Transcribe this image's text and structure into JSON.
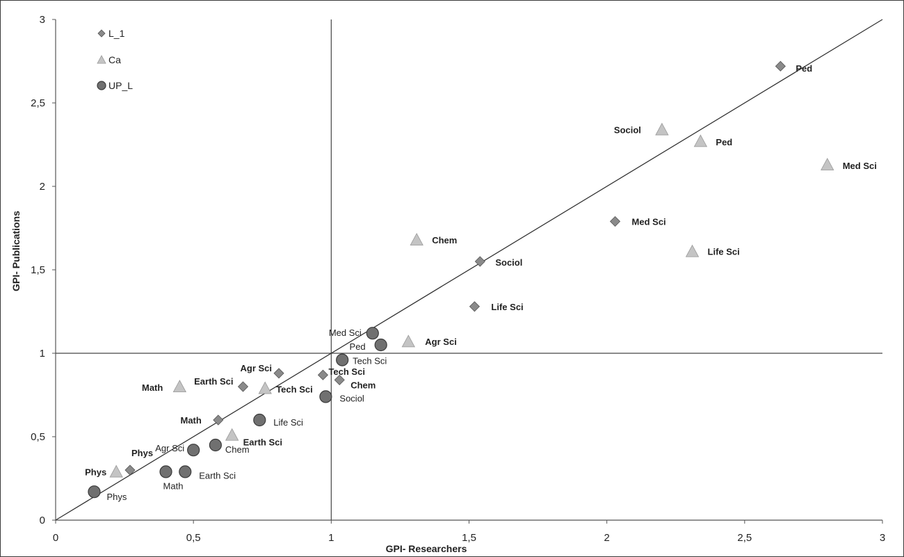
{
  "chart_data": {
    "type": "scatter",
    "title": "",
    "xlabel": "GPI- Researchers",
    "ylabel": "GPI- Publications",
    "xlim": [
      0,
      3
    ],
    "ylim": [
      0,
      3
    ],
    "xticks": [
      "0",
      "0,5",
      "1",
      "1,5",
      "2",
      "2,5",
      "3"
    ],
    "yticks": [
      "0",
      "0,5",
      "1",
      "1,5",
      "2",
      "2,5",
      "3"
    ],
    "reference_lines": {
      "vertical_x": 1,
      "horizontal_y": 1,
      "diagonal": [
        [
          0,
          0
        ],
        [
          3,
          3
        ]
      ]
    },
    "legend_position": "top-left",
    "colors": {
      "L_1": "#8a8a8a",
      "Ca": "#c4c4c4",
      "UP_L": "#707070"
    },
    "series": [
      {
        "name": "L_1",
        "marker": "diamond",
        "points": [
          {
            "label": "Ped",
            "x": 2.63,
            "y": 2.72
          },
          {
            "label": "Med Sci",
            "x": 2.03,
            "y": 1.79
          },
          {
            "label": "Sociol",
            "x": 1.54,
            "y": 1.55
          },
          {
            "label": "Life Sci",
            "x": 1.52,
            "y": 1.28
          },
          {
            "label": "Agr Sci",
            "x": 0.81,
            "y": 0.88
          },
          {
            "label": "Earth Sci",
            "x": 0.68,
            "y": 0.8
          },
          {
            "label": "Tech Sci",
            "x": 0.97,
            "y": 0.87
          },
          {
            "label": "Chem",
            "x": 1.03,
            "y": 0.84
          },
          {
            "label": "Math",
            "x": 0.59,
            "y": 0.6
          },
          {
            "label": "Phys",
            "x": 0.27,
            "y": 0.3
          }
        ]
      },
      {
        "name": "Ca",
        "marker": "triangle",
        "points": [
          {
            "label": "Sociol",
            "x": 2.2,
            "y": 2.34
          },
          {
            "label": "Ped",
            "x": 2.34,
            "y": 2.27
          },
          {
            "label": "Med Sci",
            "x": 2.8,
            "y": 2.13
          },
          {
            "label": "Life Sci",
            "x": 2.31,
            "y": 1.61
          },
          {
            "label": "Chem",
            "x": 1.31,
            "y": 1.68
          },
          {
            "label": "Agr Sci",
            "x": 1.28,
            "y": 1.07
          },
          {
            "label": "Math",
            "x": 0.45,
            "y": 0.8
          },
          {
            "label": "Tech Sci",
            "x": 0.76,
            "y": 0.79
          },
          {
            "label": "Earth Sci",
            "x": 0.64,
            "y": 0.51
          },
          {
            "label": "Phys",
            "x": 0.22,
            "y": 0.29
          }
        ]
      },
      {
        "name": "UP_L",
        "marker": "circle",
        "points": [
          {
            "label": "Med Sci",
            "x": 1.15,
            "y": 1.12
          },
          {
            "label": "Ped",
            "x": 1.18,
            "y": 1.05
          },
          {
            "label": "Tech Sci",
            "x": 1.04,
            "y": 0.96
          },
          {
            "label": "Sociol",
            "x": 0.98,
            "y": 0.74
          },
          {
            "label": "Life Sci",
            "x": 0.74,
            "y": 0.6
          },
          {
            "label": "Chem",
            "x": 0.58,
            "y": 0.45
          },
          {
            "label": "Agr Sci",
            "x": 0.5,
            "y": 0.42
          },
          {
            "label": "Earth Sci",
            "x": 0.47,
            "y": 0.29
          },
          {
            "label": "Math",
            "x": 0.4,
            "y": 0.29
          },
          {
            "label": "Phys",
            "x": 0.14,
            "y": 0.17
          }
        ]
      }
    ]
  }
}
